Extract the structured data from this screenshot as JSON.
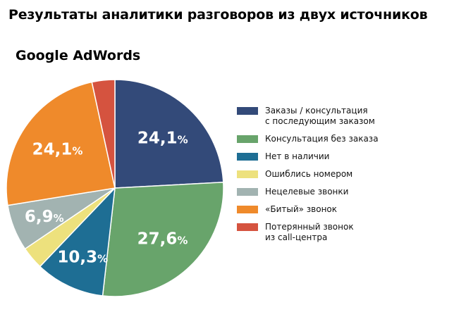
{
  "chart_data": {
    "type": "pie",
    "title": "Результаты аналитики разговоров из двух источников",
    "subtitle": "Google AdWords",
    "slices": [
      {
        "name": "Заказы / консультация\nс последующим заказом",
        "value": 24.1,
        "color": "#334a79",
        "label": "24,1"
      },
      {
        "name": "Консультация без заказа",
        "value": 27.6,
        "color": "#68a46b",
        "label": "27,6"
      },
      {
        "name": "Нет в наличии",
        "value": 10.3,
        "color": "#1e6e94",
        "label": "10,3"
      },
      {
        "name": "Ошиблись номером",
        "value": 3.4,
        "color": "#ede17d",
        "label": ""
      },
      {
        "name": "Нецелевые звонки",
        "value": 6.9,
        "color": "#a2b3b1",
        "label": "6,9"
      },
      {
        "name": "«Битый» звонок",
        "value": 24.1,
        "color": "#ef8a2b",
        "label": "24,1"
      },
      {
        "name": "Потерянный звонок\nиз call-центра",
        "value": 3.4,
        "color": "#d5533f",
        "label": ""
      }
    ],
    "percent_sign": "%",
    "legend_position": "right"
  }
}
